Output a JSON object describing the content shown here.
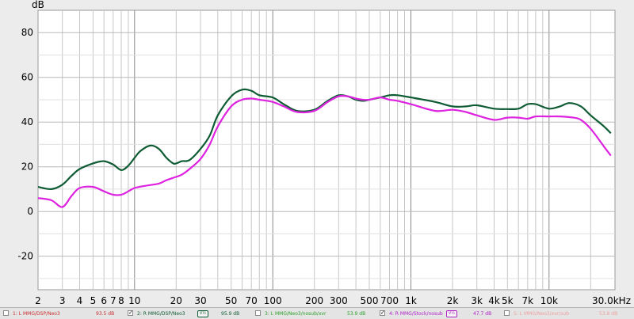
{
  "chart_data": {
    "type": "line",
    "xscale": "log",
    "xlim": [
      2,
      30000
    ],
    "ylim": [
      -35,
      90
    ],
    "ylabel": "dB",
    "grid": true,
    "yticks": [
      80,
      60,
      40,
      20,
      0,
      -20
    ],
    "xticks": [
      {
        "value": 2,
        "label": "2"
      },
      {
        "value": 3,
        "label": "3"
      },
      {
        "value": 4,
        "label": "4"
      },
      {
        "value": 5,
        "label": "5"
      },
      {
        "value": 6,
        "label": "6"
      },
      {
        "value": 7,
        "label": "7"
      },
      {
        "value": 8,
        "label": "8"
      },
      {
        "value": 10,
        "label": "10"
      },
      {
        "value": 20,
        "label": "20"
      },
      {
        "value": 30,
        "label": "30"
      },
      {
        "value": 50,
        "label": "50"
      },
      {
        "value": 70,
        "label": "70"
      },
      {
        "value": 100,
        "label": "100"
      },
      {
        "value": 200,
        "label": "200"
      },
      {
        "value": 300,
        "label": "300"
      },
      {
        "value": 500,
        "label": "500"
      },
      {
        "value": 700,
        "label": "700"
      },
      {
        "value": 1000,
        "label": "1k"
      },
      {
        "value": 2000,
        "label": "2k"
      },
      {
        "value": 3000,
        "label": "3k"
      },
      {
        "value": 4000,
        "label": "4k"
      },
      {
        "value": 5000,
        "label": "5k"
      },
      {
        "value": 7000,
        "label": "7k"
      },
      {
        "value": 10000,
        "label": "10k"
      },
      {
        "value": 30000,
        "label": "30.0kHz"
      }
    ],
    "series": [
      {
        "name": "2: R MMG/DSP/Neo3",
        "color": "#0f5c34",
        "points": [
          [
            2,
            11
          ],
          [
            2.5,
            10
          ],
          [
            3,
            12
          ],
          [
            3.5,
            16
          ],
          [
            4,
            19
          ],
          [
            5,
            21.5
          ],
          [
            6,
            22.5
          ],
          [
            7,
            21
          ],
          [
            8,
            18.5
          ],
          [
            9,
            20.5
          ],
          [
            10,
            24
          ],
          [
            11,
            27
          ],
          [
            13,
            29.5
          ],
          [
            15,
            28
          ],
          [
            17,
            24
          ],
          [
            19,
            21.5
          ],
          [
            20,
            21.5
          ],
          [
            22,
            22.5
          ],
          [
            25,
            23
          ],
          [
            30,
            28
          ],
          [
            35,
            34
          ],
          [
            40,
            43
          ],
          [
            50,
            51.5
          ],
          [
            60,
            54.5
          ],
          [
            70,
            54
          ],
          [
            80,
            52
          ],
          [
            100,
            51
          ],
          [
            120,
            48
          ],
          [
            150,
            45
          ],
          [
            200,
            45.5
          ],
          [
            250,
            49.5
          ],
          [
            300,
            52
          ],
          [
            350,
            51.5
          ],
          [
            400,
            50
          ],
          [
            450,
            49.5
          ],
          [
            500,
            50
          ],
          [
            600,
            51
          ],
          [
            700,
            52
          ],
          [
            800,
            52
          ],
          [
            1000,
            51
          ],
          [
            1500,
            49
          ],
          [
            2000,
            47
          ],
          [
            2500,
            47
          ],
          [
            3000,
            47.5
          ],
          [
            4000,
            46
          ],
          [
            5000,
            45.8
          ],
          [
            6000,
            46
          ],
          [
            7000,
            48
          ],
          [
            8000,
            48
          ],
          [
            10000,
            46
          ],
          [
            12000,
            47
          ],
          [
            14000,
            48.5
          ],
          [
            17000,
            47
          ],
          [
            20000,
            43
          ],
          [
            25000,
            38
          ],
          [
            28000,
            35
          ]
        ]
      },
      {
        "name": "4: R MMG/Stock/nosub",
        "color": "#dd22e0",
        "points": [
          [
            2,
            6
          ],
          [
            2.5,
            5
          ],
          [
            3,
            2
          ],
          [
            3.5,
            7
          ],
          [
            4,
            10.5
          ],
          [
            5,
            11
          ],
          [
            6,
            9
          ],
          [
            7,
            7.5
          ],
          [
            8,
            7.5
          ],
          [
            9,
            9
          ],
          [
            10,
            10.5
          ],
          [
            12,
            11.5
          ],
          [
            15,
            12.5
          ],
          [
            17,
            14
          ],
          [
            20,
            15.5
          ],
          [
            22,
            16.5
          ],
          [
            25,
            19
          ],
          [
            30,
            23.5
          ],
          [
            35,
            30
          ],
          [
            40,
            38
          ],
          [
            50,
            47
          ],
          [
            60,
            50
          ],
          [
            70,
            50.5
          ],
          [
            80,
            50
          ],
          [
            100,
            49
          ],
          [
            120,
            47
          ],
          [
            150,
            44.5
          ],
          [
            200,
            45
          ],
          [
            250,
            49
          ],
          [
            300,
            51.5
          ],
          [
            350,
            51.5
          ],
          [
            400,
            50.5
          ],
          [
            450,
            50
          ],
          [
            500,
            50
          ],
          [
            600,
            51
          ],
          [
            700,
            50
          ],
          [
            800,
            49.5
          ],
          [
            1000,
            48
          ],
          [
            1500,
            45
          ],
          [
            2000,
            45.5
          ],
          [
            2500,
            44.5
          ],
          [
            3000,
            43
          ],
          [
            4000,
            41
          ],
          [
            5000,
            42
          ],
          [
            6000,
            42
          ],
          [
            7000,
            41.5
          ],
          [
            8000,
            42.5
          ],
          [
            10000,
            42.5
          ],
          [
            12000,
            42.5
          ],
          [
            15000,
            42
          ],
          [
            17000,
            41
          ],
          [
            20000,
            37
          ],
          [
            25000,
            29
          ],
          [
            28000,
            25
          ]
        ]
      }
    ]
  },
  "legend": {
    "entries": [
      {
        "label": "1: L MMG/DSP/Neo3",
        "value": "93.5 dB",
        "checked": false,
        "color": "#c83030"
      },
      {
        "label": "2: R MMG/DSP/Neo3",
        "value": "95.9 dB",
        "checked": true,
        "color": "#0f5c34",
        "control": "V½"
      },
      {
        "label": "3: L MMG/Neo3/nosub/xvr",
        "value": "53.9 dB",
        "checked": false,
        "color": "#2aa02a"
      },
      {
        "label": "4: R MMG/Stock/nosub",
        "value": "47.7 dB",
        "checked": true,
        "color": "#b020c8",
        "control": "V½"
      },
      {
        "label": "5: L MMG/Neo3/xvr/sub",
        "value": "53.8 dB",
        "checked": false,
        "color": "#f0a0a0"
      }
    ]
  }
}
